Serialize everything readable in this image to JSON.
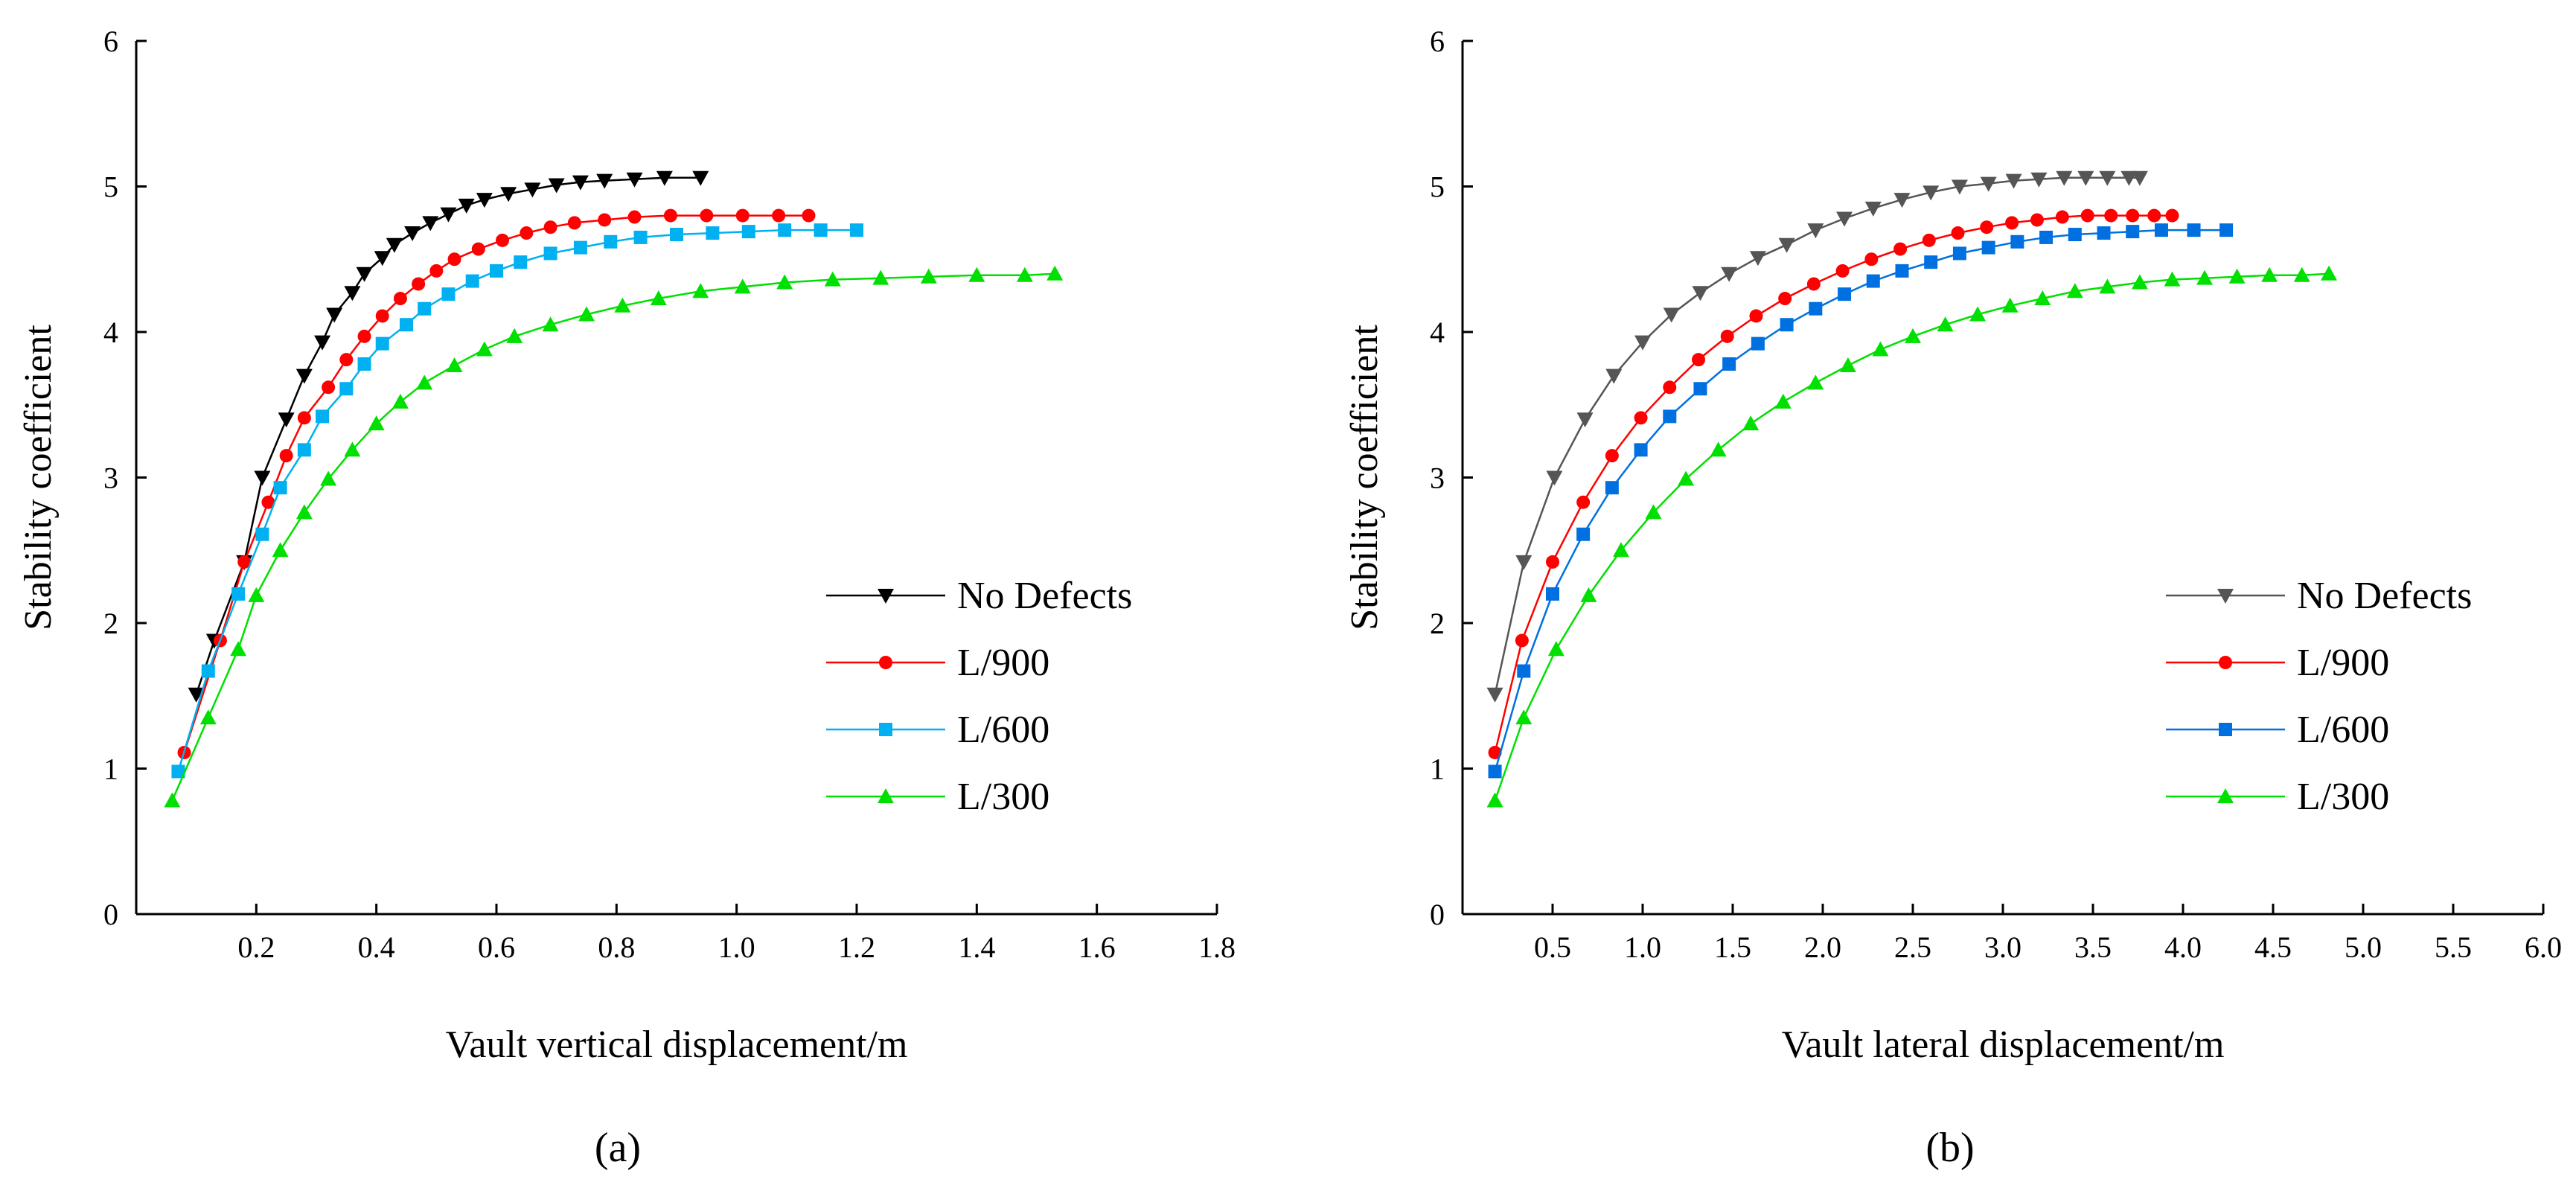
{
  "chart_data": [
    {
      "type": "line",
      "panel": "(a)",
      "xlabel": "Vault vertical displacement/m",
      "ylabel": "Stability coefficient",
      "xlim": [
        0,
        1.8
      ],
      "ylim": [
        0,
        6
      ],
      "xticks": [
        "0.2",
        "0.4",
        "0.6",
        "0.8",
        "1.0",
        "1.2",
        "1.4",
        "1.6",
        "1.8"
      ],
      "yticks": [
        "0",
        "1",
        "2",
        "3",
        "4",
        "5",
        "6"
      ],
      "legend_position": "right-middle",
      "series": [
        {
          "name": "No Defects",
          "color": "#000000",
          "marker": "triangle-down",
          "x": [
            0.1,
            0.13,
            0.18,
            0.21,
            0.25,
            0.28,
            0.31,
            0.33,
            0.36,
            0.38,
            0.41,
            0.43,
            0.46,
            0.49,
            0.52,
            0.55,
            0.58,
            0.62,
            0.66,
            0.7,
            0.74,
            0.78,
            0.83,
            0.88,
            0.94
          ],
          "y": [
            1.51,
            1.88,
            2.42,
            3.0,
            3.4,
            3.7,
            3.93,
            4.12,
            4.27,
            4.4,
            4.51,
            4.6,
            4.68,
            4.75,
            4.81,
            4.87,
            4.91,
            4.95,
            4.98,
            5.01,
            5.03,
            5.04,
            5.05,
            5.06,
            5.06
          ]
        },
        {
          "name": "L/900",
          "color": "#ff0000",
          "marker": "circle",
          "x": [
            0.08,
            0.14,
            0.18,
            0.22,
            0.25,
            0.28,
            0.32,
            0.35,
            0.38,
            0.41,
            0.44,
            0.47,
            0.5,
            0.53,
            0.57,
            0.61,
            0.65,
            0.69,
            0.73,
            0.78,
            0.83,
            0.89,
            0.95,
            1.01,
            1.07,
            1.12
          ],
          "y": [
            1.11,
            1.88,
            2.42,
            2.83,
            3.15,
            3.41,
            3.62,
            3.81,
            3.97,
            4.11,
            4.23,
            4.33,
            4.42,
            4.5,
            4.57,
            4.63,
            4.68,
            4.72,
            4.75,
            4.77,
            4.79,
            4.8,
            4.8,
            4.8,
            4.8,
            4.8
          ]
        },
        {
          "name": "L/600",
          "color": "#00b0f0",
          "marker": "square",
          "x": [
            0.07,
            0.12,
            0.17,
            0.21,
            0.24,
            0.28,
            0.31,
            0.35,
            0.38,
            0.41,
            0.45,
            0.48,
            0.52,
            0.56,
            0.6,
            0.64,
            0.69,
            0.74,
            0.79,
            0.84,
            0.9,
            0.96,
            1.02,
            1.08,
            1.14,
            1.2
          ],
          "y": [
            0.98,
            1.67,
            2.2,
            2.61,
            2.93,
            3.19,
            3.42,
            3.61,
            3.78,
            3.92,
            4.05,
            4.16,
            4.26,
            4.35,
            4.42,
            4.48,
            4.54,
            4.58,
            4.62,
            4.65,
            4.67,
            4.68,
            4.69,
            4.7,
            4.7,
            4.7
          ]
        },
        {
          "name": "L/300",
          "color": "#00e000",
          "marker": "triangle-up",
          "x": [
            0.06,
            0.12,
            0.17,
            0.2,
            0.24,
            0.28,
            0.32,
            0.36,
            0.4,
            0.44,
            0.48,
            0.53,
            0.58,
            0.63,
            0.69,
            0.75,
            0.81,
            0.87,
            0.94,
            1.01,
            1.08,
            1.16,
            1.24,
            1.32,
            1.4,
            1.48,
            1.53
          ],
          "y": [
            0.78,
            1.35,
            1.82,
            2.19,
            2.5,
            2.76,
            2.99,
            3.19,
            3.37,
            3.52,
            3.65,
            3.77,
            3.88,
            3.97,
            4.05,
            4.12,
            4.18,
            4.23,
            4.28,
            4.31,
            4.34,
            4.36,
            4.37,
            4.38,
            4.39,
            4.39,
            4.4
          ]
        }
      ]
    },
    {
      "type": "line",
      "panel": "(b)",
      "xlabel": "Vault lateral displacement/m",
      "ylabel": "Stability coefficient",
      "xlim": [
        0,
        6.0
      ],
      "ylim": [
        0,
        6
      ],
      "xticks": [
        "0.5",
        "1.0",
        "1.5",
        "2.0",
        "2.5",
        "3.0",
        "3.5",
        "4.0",
        "4.5",
        "5.0",
        "5.5",
        "6.0"
      ],
      "yticks": [
        "0",
        "1",
        "2",
        "3",
        "4",
        "5",
        "6"
      ],
      "legend_position": "right-middle",
      "series": [
        {
          "name": "No Defects",
          "color": "#555555",
          "marker": "triangle-down",
          "x": [
            0.18,
            0.34,
            0.51,
            0.68,
            0.84,
            1.0,
            1.16,
            1.32,
            1.48,
            1.64,
            1.8,
            1.96,
            2.12,
            2.28,
            2.44,
            2.6,
            2.76,
            2.92,
            3.06,
            3.2,
            3.34,
            3.46,
            3.58,
            3.7,
            3.76
          ],
          "y": [
            1.51,
            2.42,
            3.0,
            3.4,
            3.7,
            3.93,
            4.12,
            4.27,
            4.4,
            4.51,
            4.6,
            4.7,
            4.78,
            4.85,
            4.91,
            4.96,
            5.0,
            5.02,
            5.04,
            5.05,
            5.06,
            5.06,
            5.06,
            5.06,
            5.06
          ]
        },
        {
          "name": "L/900",
          "color": "#ff0000",
          "marker": "circle",
          "x": [
            0.18,
            0.33,
            0.5,
            0.67,
            0.83,
            0.99,
            1.15,
            1.31,
            1.47,
            1.63,
            1.79,
            1.95,
            2.11,
            2.27,
            2.43,
            2.59,
            2.75,
            2.91,
            3.05,
            3.19,
            3.33,
            3.47,
            3.6,
            3.72,
            3.84,
            3.94
          ],
          "y": [
            1.11,
            1.88,
            2.42,
            2.83,
            3.15,
            3.41,
            3.62,
            3.81,
            3.97,
            4.11,
            4.23,
            4.33,
            4.42,
            4.5,
            4.57,
            4.63,
            4.68,
            4.72,
            4.75,
            4.77,
            4.79,
            4.8,
            4.8,
            4.8,
            4.8,
            4.8
          ]
        },
        {
          "name": "L/600",
          "color": "#0070e0",
          "marker": "square",
          "x": [
            0.18,
            0.34,
            0.5,
            0.67,
            0.83,
            0.99,
            1.15,
            1.32,
            1.48,
            1.64,
            1.8,
            1.96,
            2.12,
            2.28,
            2.44,
            2.6,
            2.76,
            2.92,
            3.08,
            3.24,
            3.4,
            3.56,
            3.72,
            3.88,
            4.06,
            4.24
          ],
          "y": [
            0.98,
            1.67,
            2.2,
            2.61,
            2.93,
            3.19,
            3.42,
            3.61,
            3.78,
            3.92,
            4.05,
            4.16,
            4.26,
            4.35,
            4.42,
            4.48,
            4.54,
            4.58,
            4.62,
            4.65,
            4.67,
            4.68,
            4.69,
            4.7,
            4.7,
            4.7
          ]
        },
        {
          "name": "L/300",
          "color": "#00e000",
          "marker": "triangle-up",
          "x": [
            0.18,
            0.34,
            0.52,
            0.7,
            0.88,
            1.06,
            1.24,
            1.42,
            1.6,
            1.78,
            1.96,
            2.14,
            2.32,
            2.5,
            2.68,
            2.86,
            3.04,
            3.22,
            3.4,
            3.58,
            3.76,
            3.94,
            4.12,
            4.3,
            4.48,
            4.66,
            4.81
          ],
          "y": [
            0.78,
            1.35,
            1.82,
            2.19,
            2.5,
            2.76,
            2.99,
            3.19,
            3.37,
            3.52,
            3.65,
            3.77,
            3.88,
            3.97,
            4.05,
            4.12,
            4.18,
            4.23,
            4.28,
            4.31,
            4.34,
            4.36,
            4.37,
            4.38,
            4.39,
            4.39,
            4.4
          ]
        }
      ]
    }
  ]
}
